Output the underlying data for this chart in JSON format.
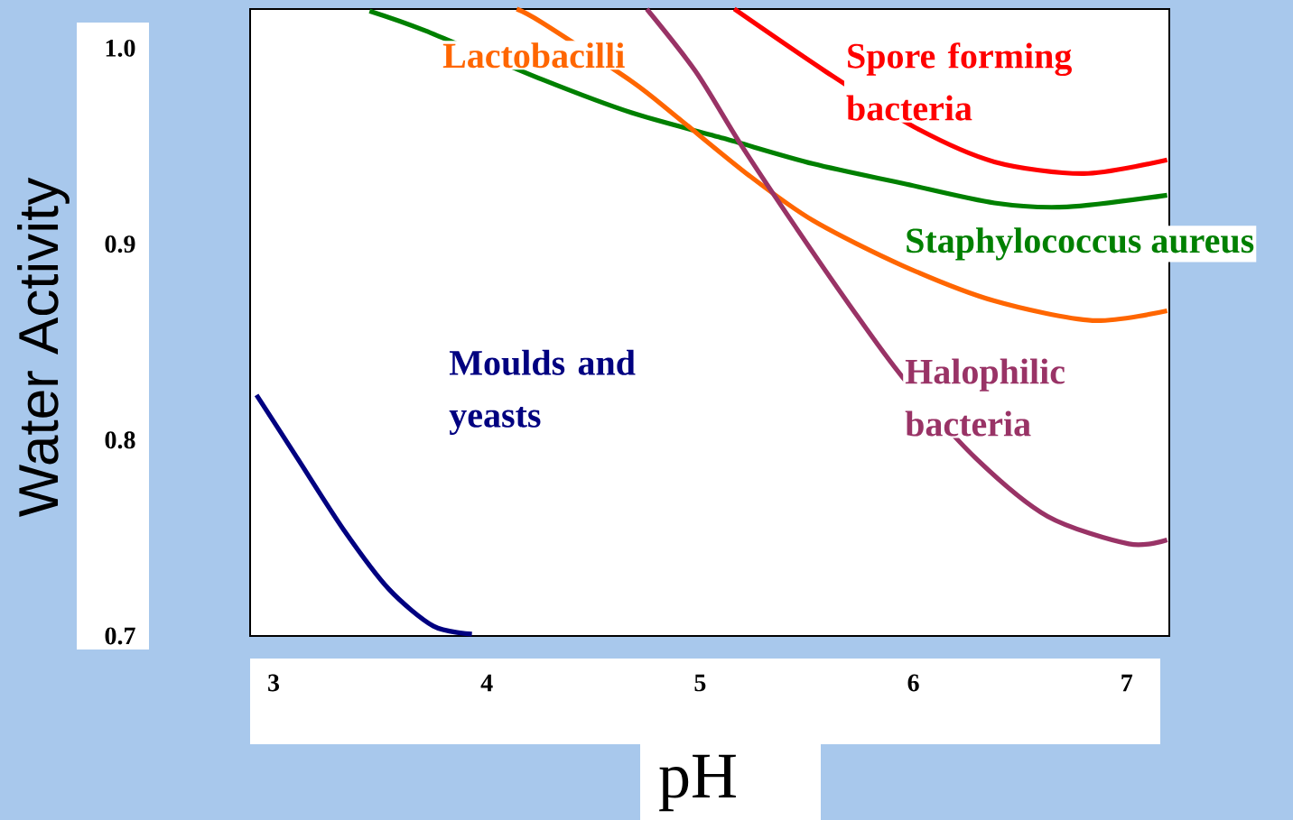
{
  "chart_data": {
    "type": "line",
    "xlabel": "pH",
    "ylabel": "Water Activity",
    "xlim": [
      2.89,
      7.2
    ],
    "ylim": [
      0.7,
      1.02
    ],
    "xticks": [
      3,
      4,
      5,
      6,
      7
    ],
    "yticks": [
      {
        "value": 1.0,
        "label": "1.0"
      },
      0.9,
      0.8,
      0.7
    ],
    "series": [
      {
        "name": "Moulds and yeasts",
        "color": "#000080",
        "x": [
          2.92,
          3.11,
          3.33,
          3.54,
          3.75,
          3.93
        ],
        "values": [
          0.823,
          0.791,
          0.754,
          0.724,
          0.705,
          0.701
        ]
      },
      {
        "name": "Staphylococcus  aureus",
        "color": "#008000",
        "x": [
          3.45,
          3.71,
          4.26,
          4.68,
          5.11,
          5.53,
          5.95,
          6.38,
          6.72,
          7.19
        ],
        "values": [
          1.019,
          1.009,
          0.984,
          0.967,
          0.954,
          0.941,
          0.931,
          0.921,
          0.919,
          0.925
        ]
      },
      {
        "name": "Lactobacilli",
        "color": "#ff6600",
        "x": [
          4.14,
          4.26,
          4.68,
          4.89,
          5.23,
          5.53,
          5.95,
          6.38,
          6.84,
          7.19
        ],
        "values": [
          1.02,
          1.013,
          0.983,
          0.965,
          0.935,
          0.912,
          0.889,
          0.871,
          0.861,
          0.866
        ]
      },
      {
        "name": "Halophilic bacteria",
        "color": "#993366",
        "x": [
          4.75,
          4.98,
          5.19,
          5.44,
          5.7,
          5.95,
          6.29,
          6.63,
          7.01,
          7.19
        ],
        "values": [
          1.02,
          0.988,
          0.951,
          0.91,
          0.869,
          0.832,
          0.791,
          0.761,
          0.747,
          0.749
        ]
      },
      {
        "name": "Spore forming bacteria",
        "color": "#ff0000",
        "x": [
          5.16,
          5.59,
          6.0,
          6.38,
          6.8,
          7.19
        ],
        "values": [
          1.02,
          0.988,
          0.96,
          0.942,
          0.936,
          0.943
        ]
      }
    ]
  }
}
